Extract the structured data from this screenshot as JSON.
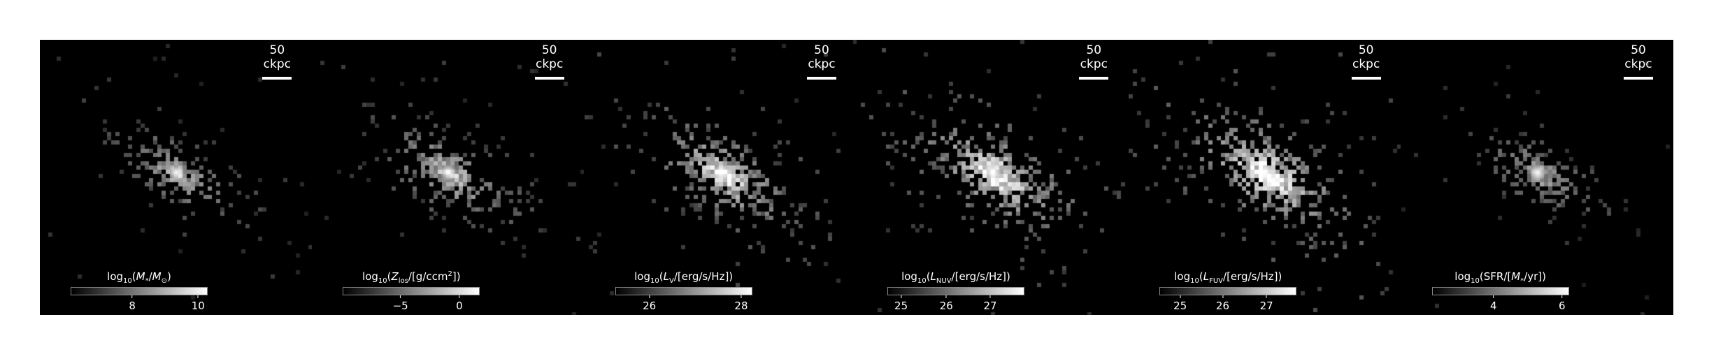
{
  "panels": [
    {
      "id": "stellar-mass",
      "scale_label": "50 ckpc",
      "colorbar_label": "log10(M*/M⊙)",
      "label_parts": [
        "log",
        "10",
        "(",
        "M",
        "*",
        "/",
        "M",
        "⊙",
        ")"
      ],
      "ticks": [
        {
          "value": "8",
          "pos": 0.45
        },
        {
          "value": "10",
          "pos": 0.93
        }
      ],
      "brightness": 0.75
    },
    {
      "id": "metallicity",
      "scale_label": "50 ckpc",
      "colorbar_label": "log10(Zlos/[g/ccm2])",
      "ticks": [
        {
          "value": "−5",
          "pos": 0.42
        },
        {
          "value": "0",
          "pos": 0.85
        }
      ],
      "brightness": 0.85
    },
    {
      "id": "v-band",
      "scale_label": "50 ckpc",
      "colorbar_label": "log10(LV/[erg/s/Hz])",
      "ticks": [
        {
          "value": "26",
          "pos": 0.25
        },
        {
          "value": "28",
          "pos": 0.92
        }
      ],
      "brightness": 1.0
    },
    {
      "id": "nuv",
      "scale_label": "50 ckpc",
      "colorbar_label": "log10(LNUV/[erg/s/Hz])",
      "ticks": [
        {
          "value": "25",
          "pos": 0.1
        },
        {
          "value": "26",
          "pos": 0.43
        },
        {
          "value": "27",
          "pos": 0.75
        }
      ],
      "brightness": 1.1
    },
    {
      "id": "fuv",
      "scale_label": "50 ckpc",
      "colorbar_label": "log10(LFUV/[erg/s/Hz])",
      "ticks": [
        {
          "value": "25",
          "pos": 0.15
        },
        {
          "value": "26",
          "pos": 0.46
        },
        {
          "value": "27",
          "pos": 0.78
        }
      ],
      "brightness": 1.15
    },
    {
      "id": "sfr",
      "scale_label": "50 ckpc",
      "colorbar_label": "log10(SFR/[M*/yr])",
      "ticks": [
        {
          "value": "4",
          "pos": 0.45
        },
        {
          "value": "6",
          "pos": 0.95
        }
      ],
      "brightness": 0.7
    }
  ]
}
